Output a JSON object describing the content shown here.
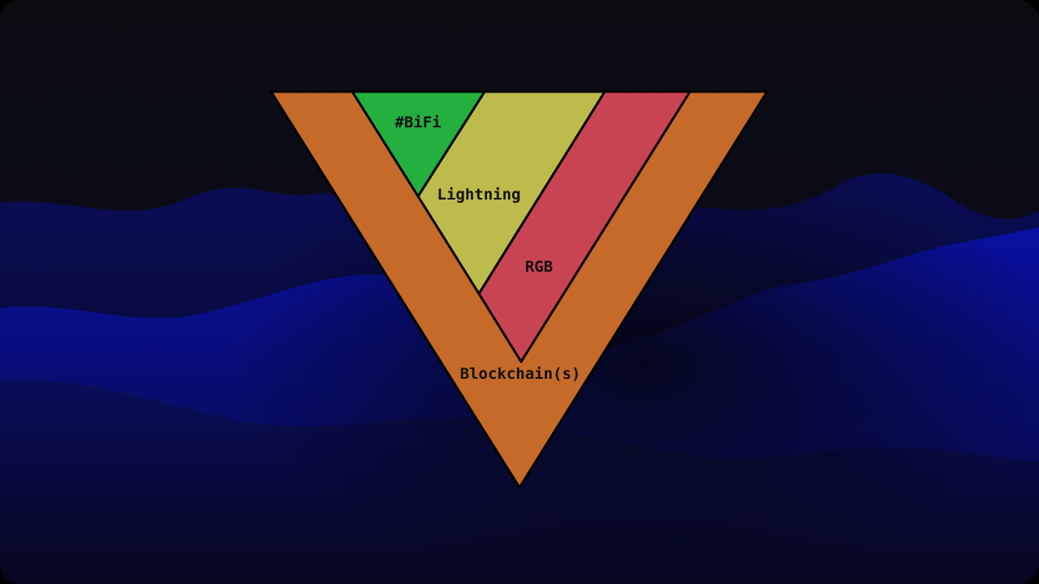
{
  "diagram": {
    "type": "inverted-triangle-stack",
    "layers": [
      {
        "id": "blockchain",
        "label": "Blockchain(s)",
        "color": "#c56a28"
      },
      {
        "id": "rgb",
        "label": "RGB",
        "color": "#c94452"
      },
      {
        "id": "lightning",
        "label": "Lightning",
        "color": "#bcbb4b"
      },
      {
        "id": "bifi",
        "label": "#BiFi",
        "color": "#23b03e"
      }
    ],
    "outline_color": "#000000",
    "background": {
      "base_color": "#0b0c13",
      "hill_color": "#0a0f8e"
    }
  }
}
